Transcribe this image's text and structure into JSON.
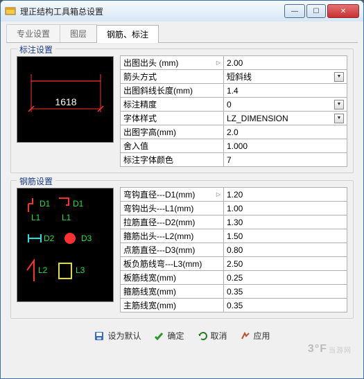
{
  "window": {
    "title": "理正结构工具箱总设置"
  },
  "tabs": {
    "t1": "专业设置",
    "t2": "图层",
    "t3": "钢筋、标注"
  },
  "group1": {
    "title": "标注设置",
    "preview_label": "1618",
    "rows": [
      {
        "label": "出图出头 (mm)",
        "value": "2.00",
        "tri": true,
        "dd": false
      },
      {
        "label": "箭头方式",
        "value": "短斜线",
        "tri": false,
        "dd": true
      },
      {
        "label": "出图斜线长度(mm)",
        "value": "1.4",
        "tri": false,
        "dd": false
      },
      {
        "label": "标注精度",
        "value": "0",
        "tri": false,
        "dd": true
      },
      {
        "label": "字体样式",
        "value": "LZ_DIMENSION",
        "tri": false,
        "dd": true
      },
      {
        "label": "出图字高(mm)",
        "value": "2.0",
        "tri": false,
        "dd": false
      },
      {
        "label": "舍入值",
        "value": "1.000",
        "tri": false,
        "dd": false
      },
      {
        "label": "标注字体颜色",
        "value": "7",
        "tri": false,
        "dd": false
      }
    ]
  },
  "group2": {
    "title": "钢筋设置",
    "rows": [
      {
        "label": "弯钩直径---D1(mm)",
        "value": "1.20",
        "tri": true,
        "dd": false
      },
      {
        "label": "弯钩出头---L1(mm)",
        "value": "1.00",
        "tri": false,
        "dd": false
      },
      {
        "label": "拉筋直径---D2(mm)",
        "value": "1.30",
        "tri": false,
        "dd": false
      },
      {
        "label": "箍筋出头---L2(mm)",
        "value": "1.50",
        "tri": false,
        "dd": false
      },
      {
        "label": "点筋直径---D3(mm)",
        "value": "0.80",
        "tri": false,
        "dd": false
      },
      {
        "label": "板负筋线弯---L3(mm)",
        "value": "2.50",
        "tri": false,
        "dd": false
      },
      {
        "label": "板筋线宽(mm)",
        "value": "0.25",
        "tri": false,
        "dd": false
      },
      {
        "label": "箍筋线宽(mm)",
        "value": "0.35",
        "tri": false,
        "dd": false
      },
      {
        "label": "主筋线宽(mm)",
        "value": "0.35",
        "tri": false,
        "dd": false
      }
    ]
  },
  "buttons": {
    "default": "设为默认",
    "ok": "确定",
    "cancel": "取消",
    "apply": "应用"
  },
  "watermark": {
    "big": "3°F",
    "small": "当游网"
  },
  "colors": {
    "red": "#ff3030",
    "green": "#20e040",
    "cyan": "#20e0e0",
    "yellow": "#e0e020"
  }
}
